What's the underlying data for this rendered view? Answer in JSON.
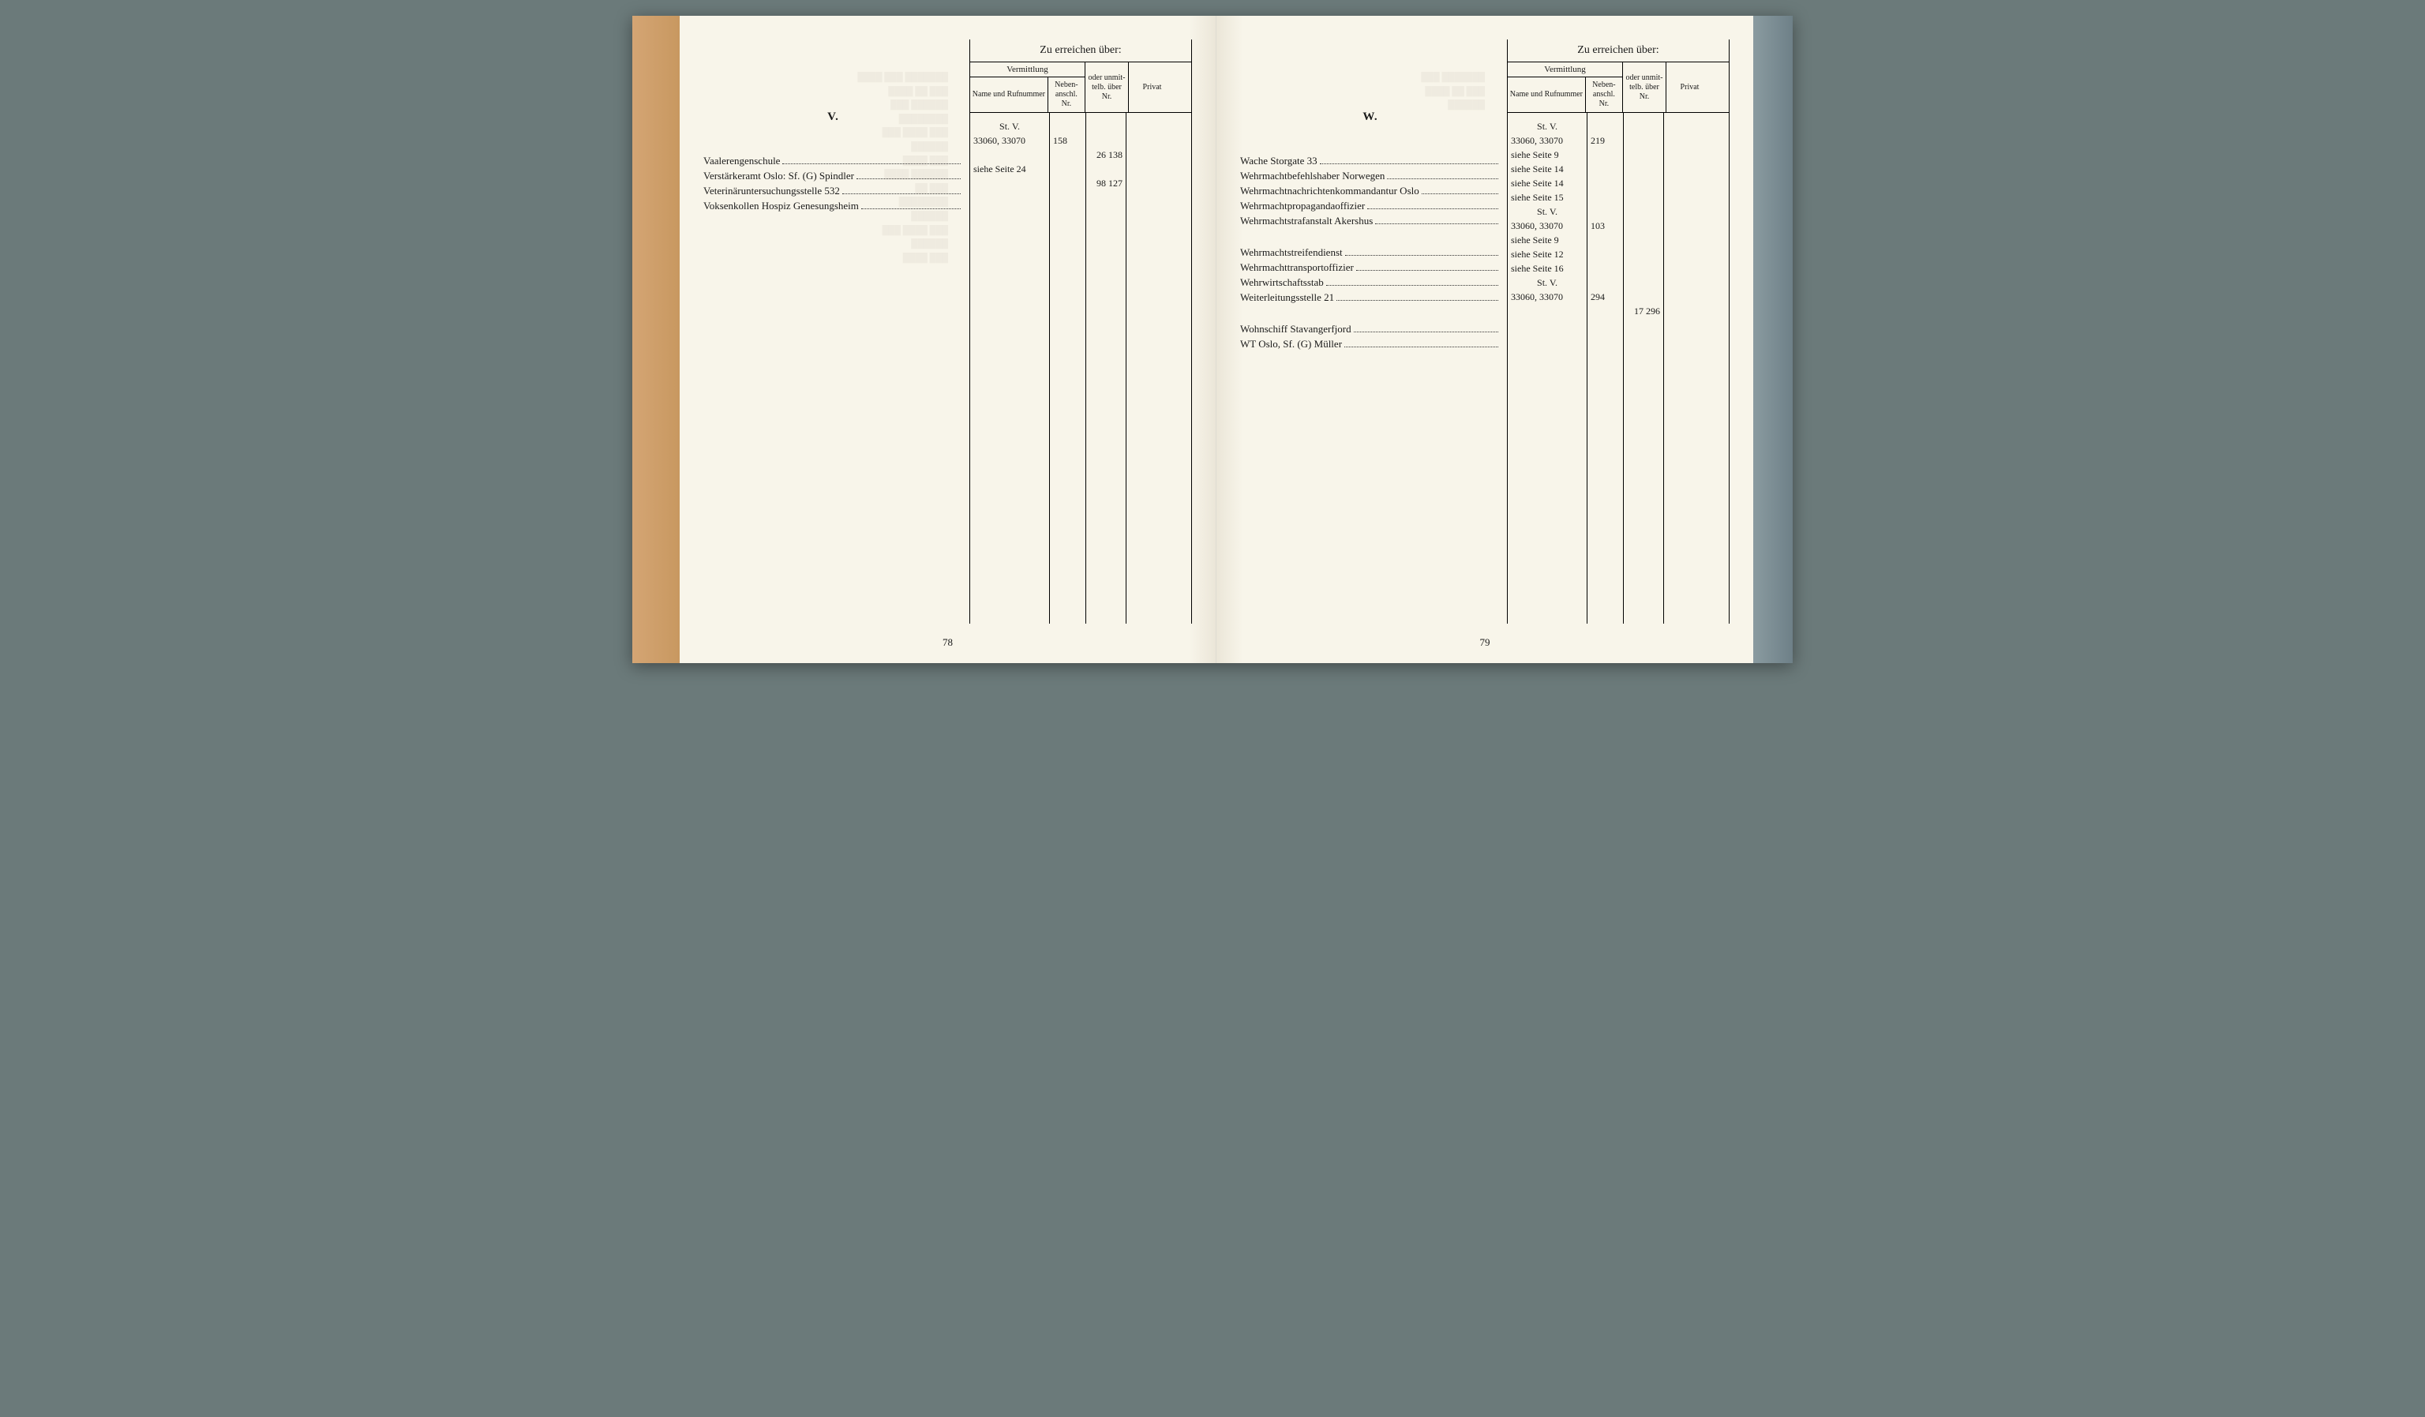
{
  "colors": {
    "page_bg": "#f8f5ea",
    "text": "#1a1a1a",
    "border": "#000000",
    "spine_left": "#c89860",
    "spine_right": "#6e8088",
    "outer_bg": "#6b7a7a"
  },
  "typography": {
    "body_font": "Times New Roman",
    "body_size_pt": 13,
    "header_size_pt": 14,
    "subheader_size_pt": 10
  },
  "header": {
    "title": "Zu erreichen über:",
    "group1_label": "Vermittlung",
    "col_name": "Name und Rufnummer",
    "col_neben": "Neben-anschl. Nr.",
    "col_unmit": "oder unmit-telb. über Nr.",
    "col_privat": "Privat"
  },
  "left_page": {
    "section_letter": "V.",
    "page_number": "78",
    "pre_rows": [
      {
        "name": "St. V.",
        "center": true
      }
    ],
    "entries": [
      {
        "label": "Vaalerengenschule",
        "name": "33060, 33070",
        "neben": "158",
        "unmit": "",
        "privat": ""
      },
      {
        "label": "Verstärkeramt Oslo: Sf. (G) Spindler",
        "name": "",
        "neben": "",
        "unmit": "26 138",
        "privat": ""
      },
      {
        "label": "Veterinäruntersuchungsstelle 532",
        "name": "siehe Seite 24",
        "neben": "",
        "unmit": "",
        "privat": ""
      },
      {
        "label": "Voksenkollen Hospiz Genesungsheim",
        "name": "",
        "neben": "",
        "unmit": "98 127",
        "privat": ""
      }
    ]
  },
  "right_page": {
    "section_letter": "W.",
    "page_number": "79",
    "pre_rows": [
      {
        "name": "St. V.",
        "center": true
      }
    ],
    "entries": [
      {
        "label": "Wache Storgate 33",
        "name": "33060, 33070",
        "neben": "219",
        "unmit": "",
        "privat": ""
      },
      {
        "label": "Wehrmachtbefehlshaber Norwegen",
        "name": "siehe Seite 9",
        "neben": "",
        "unmit": "",
        "privat": ""
      },
      {
        "label": "Wehrmachtnachrichtenkommandantur Oslo",
        "name": "siehe Seite 14",
        "neben": "",
        "unmit": "",
        "privat": ""
      },
      {
        "label": "Wehrmachtpropagandaoffizier",
        "name": "siehe Seite 14",
        "neben": "",
        "unmit": "",
        "privat": ""
      },
      {
        "label": "Wehrmachtstrafanstalt Akershus",
        "name": "siehe Seite 15",
        "neben": "",
        "unmit": "",
        "privat": ""
      },
      {
        "label": "",
        "name": "St. V.",
        "neben": "",
        "unmit": "",
        "privat": "",
        "center": true
      },
      {
        "label": "Wehrmachtstreifendienst",
        "name": "33060, 33070",
        "neben": "103",
        "unmit": "",
        "privat": ""
      },
      {
        "label": "Wehrmachttransportoffizier",
        "name": "siehe Seite 9",
        "neben": "",
        "unmit": "",
        "privat": ""
      },
      {
        "label": "Wehrwirtschaftsstab",
        "name": "siehe Seite 12",
        "neben": "",
        "unmit": "",
        "privat": ""
      },
      {
        "label": "Weiterleitungsstelle 21",
        "name": "siehe Seite 16",
        "neben": "",
        "unmit": "",
        "privat": ""
      },
      {
        "label": "",
        "name": "St. V.",
        "neben": "",
        "unmit": "",
        "privat": "",
        "center": true
      },
      {
        "label": "Wohnschiff Stavangerfjord",
        "name": "33060, 33070",
        "neben": "294",
        "unmit": "",
        "privat": ""
      },
      {
        "label": "WT Oslo, Sf. (G) Müller",
        "name": "",
        "neben": "",
        "unmit": "17 296",
        "privat": ""
      }
    ]
  }
}
